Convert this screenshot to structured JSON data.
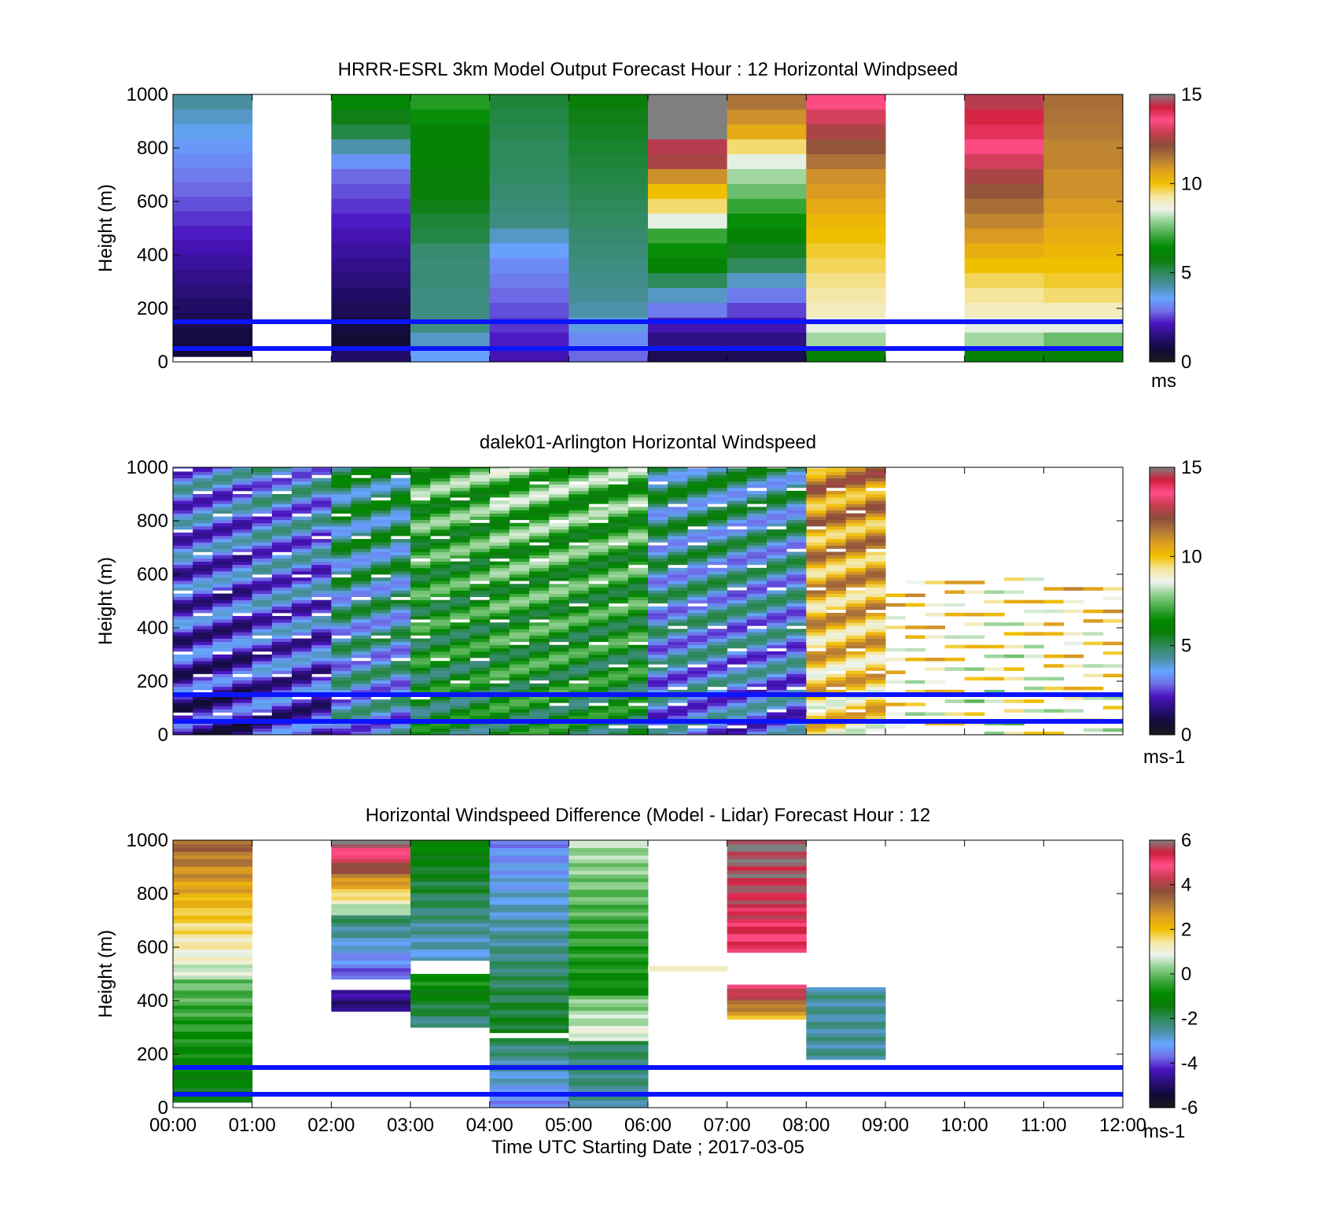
{
  "figure": {
    "xlabel": "Time UTC  Starting Date ; 2017-03-05",
    "xticks": [
      "00:00",
      "01:00",
      "02:00",
      "03:00",
      "04:00",
      "05:00",
      "06:00",
      "07:00",
      "08:00",
      "09:00",
      "10:00",
      "11:00",
      "12:00"
    ]
  },
  "colormap": [
    "#1a1a1a",
    "#110a3a",
    "#2a0f7a",
    "#4a14c0",
    "#7070e8",
    "#66a6ff",
    "#4a8fa0",
    "#2e8a5a",
    "#0a7d0a",
    "#008a00",
    "#44aa44",
    "#8fd08f",
    "#eef4ee",
    "#f5e6a0",
    "#f0c000",
    "#e0a020",
    "#b07838",
    "#8c4d3a",
    "#c83c50",
    "#ff4d88",
    "#d01e3c",
    "#7f7f7f"
  ],
  "chart_data": [
    {
      "type": "heatmap",
      "title": "HRRR-ESRL 3km Model Output   Forecast Hour : 12 Horizontal Windpseed",
      "ylabel": "Height (m)",
      "yticks": [
        "0",
        "200",
        "400",
        "600",
        "800",
        "1000"
      ],
      "ylim": [
        0,
        1000
      ],
      "xlim_hours": [
        0,
        12
      ],
      "colorbar": {
        "ticks": [
          "0",
          "5",
          "10",
          "15"
        ],
        "range": [
          0,
          15
        ],
        "unit": "ms"
      },
      "reference_lines_m": [
        50,
        150
      ],
      "columns": [
        {
          "t": "00:00",
          "base_m": 20,
          "values": [
            0.7,
            0.8,
            1.0,
            1.2,
            1.4,
            1.6,
            1.8,
            2.0,
            2.2,
            2.4,
            2.6,
            2.8,
            3.0,
            3.2,
            3.4,
            3.7,
            4.0,
            4.3
          ]
        },
        {
          "t": "01:00",
          "values": []
        },
        {
          "t": "02:00",
          "base_m": 0,
          "values": [
            1.2,
            0.6,
            0.8,
            1.0,
            1.2,
            1.4,
            1.6,
            1.8,
            2.0,
            2.2,
            2.4,
            2.6,
            2.8,
            3.3,
            4.2,
            5.2,
            5.6,
            6.2
          ]
        },
        {
          "t": "03:00",
          "base_m": 0,
          "values": [
            3.5,
            4.0,
            4.6,
            4.6,
            4.6,
            4.7,
            4.7,
            4.8,
            5.2,
            5.3,
            5.6,
            5.8,
            5.8,
            6.0,
            6.0,
            6.0,
            6.5,
            6.8
          ]
        },
        {
          "t": "04:00",
          "base_m": 0,
          "values": [
            2.0,
            2.2,
            2.4,
            2.6,
            2.8,
            3.0,
            3.2,
            3.5,
            4.0,
            4.6,
            4.7,
            4.8,
            4.9,
            5.0,
            5.0,
            5.1,
            5.2,
            5.3
          ]
        },
        {
          "t": "05:00",
          "base_m": 0,
          "values": [
            2.8,
            3.2,
            3.8,
            4.2,
            4.4,
            4.5,
            4.6,
            4.7,
            4.8,
            4.9,
            5.0,
            5.1,
            5.2,
            5.3,
            5.4,
            5.5,
            5.6,
            5.8
          ]
        },
        {
          "t": "06:00",
          "base_m": 0,
          "values": [
            1.0,
            1.5,
            2.0,
            3.0,
            4.0,
            5.0,
            6.0,
            6.5,
            7.0,
            8.5,
            9.5,
            10.0,
            11.0,
            12.5,
            14.5,
            15.0,
            15.5,
            15.5
          ]
        },
        {
          "t": "07:00",
          "base_m": 0,
          "values": [
            1.0,
            1.5,
            2.0,
            2.5,
            3.0,
            4.0,
            5.0,
            5.5,
            6.0,
            6.5,
            7.0,
            7.5,
            8.0,
            8.5,
            9.5,
            10.5,
            11.0,
            11.5
          ]
        },
        {
          "t": "08:00",
          "base_m": 0,
          "values": [
            6.0,
            8.0,
            8.5,
            9.0,
            9.2,
            9.4,
            9.6,
            9.8,
            10.0,
            10.2,
            10.5,
            10.8,
            11.0,
            11.5,
            12.0,
            12.5,
            13.0,
            13.5
          ]
        },
        {
          "t": "09:00",
          "values": []
        },
        {
          "t": "10:00",
          "base_m": 0,
          "values": [
            6.0,
            8.0,
            8.5,
            9.0,
            9.3,
            9.6,
            10.0,
            10.4,
            10.8,
            11.2,
            11.6,
            12.0,
            12.5,
            13.0,
            13.5,
            14.0,
            14.2,
            14.5
          ]
        },
        {
          "t": "11:00",
          "base_m": 0,
          "values": [
            6.0,
            7.5,
            8.5,
            9.0,
            9.5,
            9.8,
            10.0,
            10.2,
            10.4,
            10.6,
            10.8,
            11.0,
            11.0,
            11.2,
            11.2,
            11.4,
            11.5,
            11.6
          ]
        }
      ]
    },
    {
      "type": "heatmap",
      "title": "dalek01-Arlington  Horizontal Windspeed",
      "ylabel": "Height (m)",
      "yticks": [
        "0",
        "200",
        "400",
        "600",
        "800",
        "1000"
      ],
      "ylim": [
        0,
        1000
      ],
      "xlim_hours": [
        0,
        12
      ],
      "colorbar": {
        "ticks": [
          "0",
          "5",
          "10",
          "15"
        ],
        "range": [
          0,
          15
        ],
        "unit": "ms-1"
      },
      "reference_lines_m": [
        50,
        150
      ],
      "profile_interval_hours": 0.25,
      "top_m_by_hour": [
        1000,
        1000,
        1000,
        1000,
        1000,
        1000,
        1000,
        1000,
        1000,
        600,
        600,
        550
      ],
      "mean_speed_by_hour": [
        1.8,
        2.2,
        3.5,
        5.5,
        5.8,
        5.6,
        3.2,
        3.0,
        9.5,
        9.0,
        8.5,
        9.0
      ]
    },
    {
      "type": "heatmap",
      "title": "Horizontal Windspeed Difference (Model - Lidar) Forecast Hour : 12",
      "ylabel": "Height (m)",
      "yticks": [
        "0",
        "200",
        "400",
        "600",
        "800",
        "1000"
      ],
      "ylim": [
        0,
        1000
      ],
      "xlim_hours": [
        0,
        12
      ],
      "colorbar": {
        "ticks": [
          "-6",
          "-4",
          "-2",
          "0",
          "2",
          "4",
          "6"
        ],
        "range": [
          -6,
          6
        ],
        "unit": "ms-1"
      },
      "reference_lines_m": [
        50,
        150
      ],
      "columns": [
        {
          "t": "00:00",
          "segments": [
            [
              20,
              480,
              -1.5,
              0.0
            ],
            [
              480,
              1000,
              0.5,
              3.5
            ]
          ]
        },
        {
          "t": "01:00",
          "segments": []
        },
        {
          "t": "02:00",
          "segments": [
            [
              360,
              440,
              -5.0,
              -4.5
            ],
            [
              480,
              720,
              -4.0,
              -2.0
            ],
            [
              720,
              1000,
              0.0,
              6.0
            ]
          ]
        },
        {
          "t": "03:00",
          "segments": [
            [
              300,
              500,
              -2.5,
              -0.5
            ],
            [
              550,
              1000,
              -3.0,
              -1.0
            ]
          ]
        },
        {
          "t": "04:00",
          "segments": [
            [
              0,
              260,
              -3.5,
              -2.0
            ],
            [
              280,
              1000,
              -1.5,
              -3.5
            ]
          ]
        },
        {
          "t": "05:00",
          "segments": [
            [
              0,
              250,
              -2.5,
              -2.0
            ],
            [
              250,
              420,
              1.0,
              0.0
            ],
            [
              420,
              1000,
              -1.0,
              0.5
            ]
          ]
        },
        {
          "t": "06:00",
          "segments": [
            [
              510,
              530,
              1.5,
              1.5
            ]
          ]
        },
        {
          "t": "07:00",
          "segments": [
            [
              330,
              460,
              2.0,
              5.0
            ],
            [
              580,
              1000,
              5.0,
              6.0
            ]
          ]
        },
        {
          "t": "08:00",
          "segments": [
            [
              180,
              450,
              -2.5,
              -2.5
            ]
          ]
        },
        {
          "t": "09:00",
          "segments": []
        },
        {
          "t": "10:00",
          "segments": []
        },
        {
          "t": "11:00",
          "segments": []
        }
      ]
    }
  ]
}
